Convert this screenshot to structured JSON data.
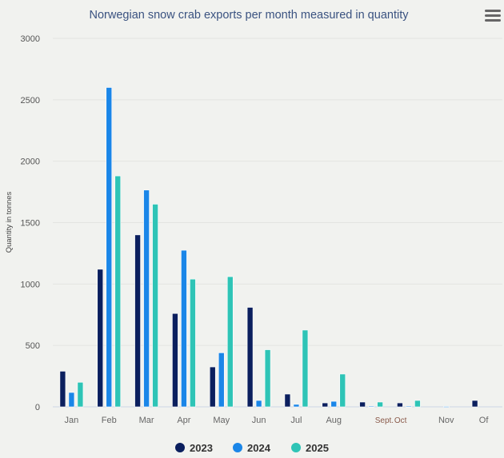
{
  "chart_data": {
    "type": "bar",
    "title": "Norwegian snow crab exports per month measured in quantity",
    "xlabel": "",
    "ylabel": "Quantity in tonnes",
    "ylim": [
      0,
      3000
    ],
    "yticks": [
      0,
      500,
      1000,
      1500,
      2000,
      2500,
      3000
    ],
    "grid": true,
    "legend_placement": "bottom",
    "categories": [
      "Jan",
      "Feb",
      "Mar",
      "Apr",
      "May",
      "Jun",
      "Jul",
      "Aug",
      "Sept.",
      "Oct",
      "Nov",
      "Of"
    ],
    "series": [
      {
        "name": "2023",
        "color": "#0b1f5e",
        "values": [
          290,
          1120,
          1400,
          760,
          325,
          810,
          104,
          32,
          39,
          32,
          0,
          52
        ]
      },
      {
        "name": "2024",
        "color": "#1a86e8",
        "values": [
          117,
          2600,
          1765,
          1275,
          440,
          52,
          20,
          45,
          5,
          5,
          3,
          0
        ]
      },
      {
        "name": "2025",
        "color": "#2ec4b6",
        "values": [
          200,
          1880,
          1650,
          1040,
          1060,
          465,
          625,
          267,
          39,
          52,
          0,
          0
        ]
      }
    ]
  },
  "menu_icon": "hamburger-menu-icon"
}
